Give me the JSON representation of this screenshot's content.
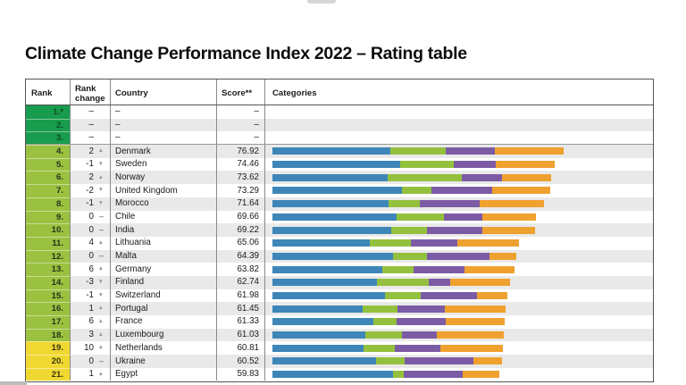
{
  "page": {
    "title": "Climate Change Performance Index 2022 – Rating table"
  },
  "icons": {
    "up_arrow": "▲",
    "down_arrow": "▼",
    "no_change": "–"
  },
  "colors": {
    "tier_top": "#189c4d",
    "tier_high": "#9ac140",
    "tier_medium": "#f0d832",
    "seg_blue": "#3e86b8",
    "seg_green": "#94c13d",
    "seg_purple": "#7c5ba5",
    "seg_orange": "#efa12f",
    "row_stripe": "#e9e9e9"
  },
  "table": {
    "headers": {
      "rank": "Rank",
      "rank_change": "Rank change",
      "country": "Country",
      "score": "Score**",
      "categories": "Categories"
    },
    "rows": [
      {
        "rank": "1.*",
        "change": "–",
        "dir": "",
        "country": "–",
        "score": "–",
        "tier": "top",
        "segments": null
      },
      {
        "rank": "2.",
        "change": "–",
        "dir": "",
        "country": "–",
        "score": "–",
        "tier": "top",
        "segments": null
      },
      {
        "rank": "3.",
        "change": "–",
        "dir": "",
        "country": "–",
        "score": "–",
        "tier": "top",
        "segments": null
      },
      {
        "rank": "4.",
        "change": "2",
        "dir": "up",
        "country": "Denmark",
        "score": "76.92",
        "tier": "high",
        "segments": [
          31.2,
          14.6,
          13.0,
          18.1
        ]
      },
      {
        "rank": "5.",
        "change": "-1",
        "dir": "down",
        "country": "Sweden",
        "score": "74.46",
        "tier": "high",
        "segments": [
          33.8,
          14.2,
          11.1,
          15.4
        ]
      },
      {
        "rank": "6.",
        "change": "2",
        "dir": "up",
        "country": "Norway",
        "score": "73.62",
        "tier": "high",
        "segments": [
          30.5,
          19.4,
          10.8,
          12.9
        ]
      },
      {
        "rank": "7.",
        "change": "-2",
        "dir": "down",
        "country": "United Kingdom",
        "score": "73.29",
        "tier": "high",
        "segments": [
          34.2,
          7.8,
          16.1,
          15.2
        ]
      },
      {
        "rank": "8.",
        "change": "-1",
        "dir": "down",
        "country": "Morocco",
        "score": "71.64",
        "tier": "high",
        "segments": [
          30.8,
          8.1,
          15.8,
          17.0
        ]
      },
      {
        "rank": "9.",
        "change": "0",
        "dir": "none",
        "country": "Chile",
        "score": "69.66",
        "tier": "high",
        "segments": [
          32.8,
          12.5,
          10.1,
          14.3
        ]
      },
      {
        "rank": "10.",
        "change": "0",
        "dir": "none",
        "country": "India",
        "score": "69.22",
        "tier": "high",
        "segments": [
          31.4,
          9.5,
          14.5,
          13.8
        ]
      },
      {
        "rank": "11.",
        "change": "4",
        "dir": "up",
        "country": "Lithuania",
        "score": "65.06",
        "tier": "high",
        "segments": [
          25.7,
          10.9,
          12.3,
          16.2
        ]
      },
      {
        "rank": "12.",
        "change": "0",
        "dir": "none",
        "country": "Malta",
        "score": "64.39",
        "tier": "high",
        "segments": [
          31.8,
          9.1,
          16.4,
          7.1
        ]
      },
      {
        "rank": "13.",
        "change": "6",
        "dir": "up",
        "country": "Germany",
        "score": "63.82",
        "tier": "high",
        "segments": [
          28.9,
          8.3,
          13.6,
          13.0
        ]
      },
      {
        "rank": "14.",
        "change": "-3",
        "dir": "down",
        "country": "Finland",
        "score": "62.74",
        "tier": "high",
        "segments": [
          27.5,
          13.8,
          5.5,
          15.9
        ]
      },
      {
        "rank": "15.",
        "change": "-1",
        "dir": "down",
        "country": "Switzerland",
        "score": "61.98",
        "tier": "high",
        "segments": [
          29.7,
          9.5,
          14.8,
          8.0
        ]
      },
      {
        "rank": "16.",
        "change": "1",
        "dir": "up",
        "country": "Portugal",
        "score": "61.45",
        "tier": "high",
        "segments": [
          23.8,
          9.3,
          12.4,
          16.0
        ]
      },
      {
        "rank": "17.",
        "change": "6",
        "dir": "up",
        "country": "France",
        "score": "61.33",
        "tier": "high",
        "segments": [
          26.7,
          6.1,
          12.9,
          15.6
        ]
      },
      {
        "rank": "18.",
        "change": "3",
        "dir": "up",
        "country": "Luxembourg",
        "score": "61.03",
        "tier": "high",
        "segments": [
          24.5,
          9.7,
          9.1,
          17.7
        ]
      },
      {
        "rank": "19.",
        "change": "10",
        "dir": "up",
        "country": "Netherlands",
        "score": "60.81",
        "tier": "medium",
        "segments": [
          24.0,
          8.4,
          11.9,
          16.5
        ]
      },
      {
        "rank": "20.",
        "change": "0",
        "dir": "none",
        "country": "Ukraine",
        "score": "60.52",
        "tier": "medium",
        "segments": [
          27.3,
          7.5,
          18.2,
          7.5
        ]
      },
      {
        "rank": "21.",
        "change": "1",
        "dir": "up",
        "country": "Egypt",
        "score": "59.83",
        "tier": "medium",
        "segments": [
          31.8,
          2.8,
          15.6,
          9.6
        ]
      }
    ]
  }
}
